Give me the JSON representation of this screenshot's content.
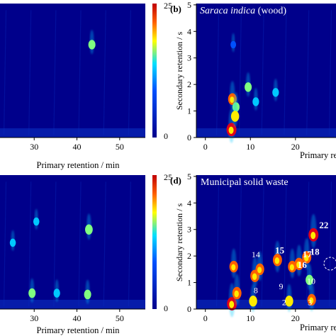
{
  "figure": {
    "panels": {
      "a": {
        "xlabel": "Primary retention / min",
        "xticks": [
          "30",
          "40",
          "50"
        ],
        "colorbar_ticks": [
          "25",
          "0"
        ]
      },
      "b": {
        "letter": "(b)",
        "title_italic": "Saraca indica",
        "title_rest": " (wood)",
        "ylabel": "Secondary retention / s",
        "xlabel": "Primary retention / min",
        "yticks": [
          "0",
          "1",
          "2",
          "3",
          "4",
          "5"
        ],
        "xticks": [
          "0",
          "10",
          "20"
        ]
      },
      "c": {
        "xlabel": "Primary retention / min",
        "xticks": [
          "30",
          "40",
          "50"
        ],
        "colorbar_ticks": [
          "25",
          "0"
        ]
      },
      "d": {
        "letter": "(d)",
        "title": "Municipal solid waste",
        "ylabel": "Secondary retention / s",
        "xlabel": "Primary retention / min",
        "yticks": [
          "0",
          "1",
          "2",
          "3",
          "4",
          "5"
        ],
        "xticks": [
          "0",
          "10",
          "20"
        ],
        "peak_labels": [
          "2",
          "3",
          "8",
          "9",
          "10",
          "14",
          "15",
          "16",
          "17",
          "18",
          "22"
        ]
      }
    },
    "colors": {
      "background": "#00008b",
      "low": "#0a2fbf",
      "mid": "#00c8ff",
      "high": "#ffeb00",
      "peak": "#e0001a"
    }
  },
  "chart_data": [
    {
      "type": "heatmap",
      "panel": "a",
      "xlabel": "Primary retention / min",
      "xlim": [
        20,
        55
      ],
      "colorbar": {
        "min": 0,
        "max": 25
      },
      "peaks": [
        {
          "x": 43.5,
          "y": 3.5,
          "intensity": 14
        }
      ]
    },
    {
      "type": "heatmap",
      "panel": "b",
      "title": "Saraca indica (wood)",
      "xlabel": "Primary retention / min",
      "ylabel": "Secondary retention / s",
      "xlim": [
        0,
        30
      ],
      "ylim": [
        0,
        5
      ],
      "peaks": [
        {
          "x": 5.8,
          "y": 0.3,
          "intensity": 25
        },
        {
          "x": 6.0,
          "y": 1.45,
          "intensity": 20
        },
        {
          "x": 6.8,
          "y": 1.15,
          "intensity": 14
        },
        {
          "x": 6.6,
          "y": 0.8,
          "intensity": 18
        },
        {
          "x": 9.5,
          "y": 1.9,
          "intensity": 14
        },
        {
          "x": 11.2,
          "y": 1.35,
          "intensity": 12
        },
        {
          "x": 15.6,
          "y": 1.7,
          "intensity": 12
        },
        {
          "x": 6.2,
          "y": 3.5,
          "intensity": 8
        }
      ]
    },
    {
      "type": "heatmap",
      "panel": "c",
      "xlabel": "Primary retention / min",
      "xlim": [
        20,
        55
      ],
      "colorbar": {
        "min": 0,
        "max": 25
      },
      "peaks": [
        {
          "x": 29.5,
          "y": 0.6,
          "intensity": 14
        },
        {
          "x": 35.3,
          "y": 0.6,
          "intensity": 12
        },
        {
          "x": 42.5,
          "y": 0.55,
          "intensity": 14
        },
        {
          "x": 42.8,
          "y": 3.0,
          "intensity": 16
        },
        {
          "x": 30.5,
          "y": 3.3,
          "intensity": 10
        },
        {
          "x": 25.0,
          "y": 2.5,
          "intensity": 10
        }
      ]
    },
    {
      "type": "heatmap",
      "panel": "d",
      "title": "Municipal solid waste",
      "xlabel": "Primary retention / min",
      "ylabel": "Secondary retention / s",
      "xlim": [
        0,
        30
      ],
      "ylim": [
        0,
        5
      ],
      "peaks": [
        {
          "x": 5.9,
          "y": 0.2,
          "intensity": 25
        },
        {
          "x": 7.0,
          "y": 0.6,
          "intensity": 22
        },
        {
          "x": 6.3,
          "y": 1.6,
          "intensity": 20
        },
        {
          "x": 10.6,
          "y": 0.3,
          "intensity": 18
        },
        {
          "x": 11.0,
          "y": 1.25,
          "intensity": 22
        },
        {
          "x": 12.1,
          "y": 1.5,
          "intensity": 20
        },
        {
          "x": 16.0,
          "y": 1.85,
          "intensity": 22
        },
        {
          "x": 18.6,
          "y": 0.3,
          "intensity": 18
        },
        {
          "x": 19.3,
          "y": 1.6,
          "intensity": 20
        },
        {
          "x": 20.8,
          "y": 1.7,
          "intensity": 22
        },
        {
          "x": 22.5,
          "y": 1.95,
          "intensity": 22
        },
        {
          "x": 23.6,
          "y": 0.35,
          "intensity": 20
        },
        {
          "x": 24.0,
          "y": 2.8,
          "intensity": 25
        },
        {
          "x": 23.1,
          "y": 1.1,
          "intensity": 16
        }
      ]
    }
  ]
}
